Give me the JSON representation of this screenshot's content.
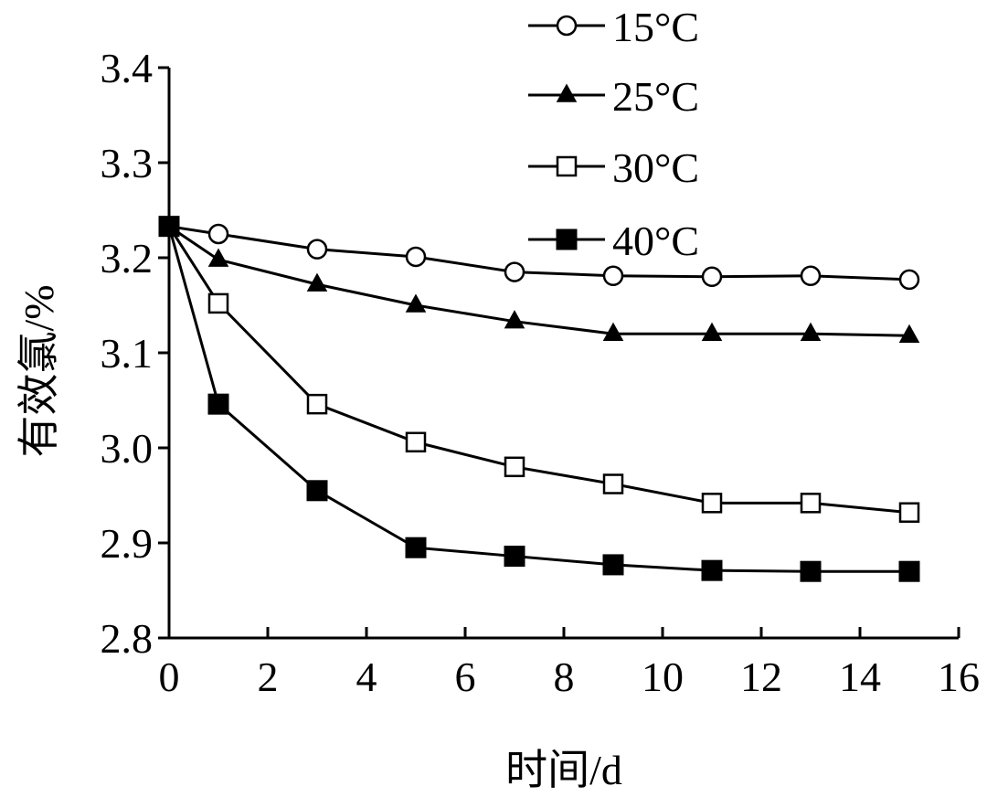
{
  "chart_data": {
    "type": "line",
    "title": "",
    "xlabel": "时间/d",
    "ylabel": "有效氯/%",
    "xlim": [
      0,
      16
    ],
    "ylim": [
      2.8,
      3.4
    ],
    "xticks": [
      0,
      2,
      4,
      6,
      8,
      10,
      12,
      14,
      16
    ],
    "yticks": [
      2.8,
      2.9,
      3.0,
      3.1,
      3.2,
      3.3,
      3.4
    ],
    "xtick_labels": [
      "0",
      "2",
      "4",
      "6",
      "8",
      "10",
      "12",
      "14",
      "16"
    ],
    "ytick_labels": [
      "2.8",
      "2.9",
      "3.0",
      "3.1",
      "3.2",
      "3.3",
      "3.4"
    ],
    "grid": false,
    "legend_position": "top-right",
    "x": [
      0,
      1,
      3,
      5,
      7,
      9,
      11,
      13,
      15
    ],
    "series": [
      {
        "name": "15°C",
        "marker": "open-circle",
        "color": "#000000",
        "values": [
          3.233,
          3.225,
          3.209,
          3.201,
          3.185,
          3.181,
          3.18,
          3.181,
          3.177
        ]
      },
      {
        "name": "25°C",
        "marker": "filled-triangle",
        "color": "#000000",
        "values": [
          3.233,
          3.198,
          3.172,
          3.15,
          3.133,
          3.12,
          3.12,
          3.12,
          3.118
        ]
      },
      {
        "name": "30°C",
        "marker": "open-square",
        "color": "#000000",
        "values": [
          3.233,
          3.152,
          3.046,
          3.006,
          2.98,
          2.962,
          2.942,
          2.942,
          2.932
        ]
      },
      {
        "name": "40°C",
        "marker": "filled-square",
        "color": "#000000",
        "values": [
          3.233,
          3.046,
          2.955,
          2.895,
          2.886,
          2.877,
          2.871,
          2.87,
          2.87
        ]
      }
    ]
  }
}
